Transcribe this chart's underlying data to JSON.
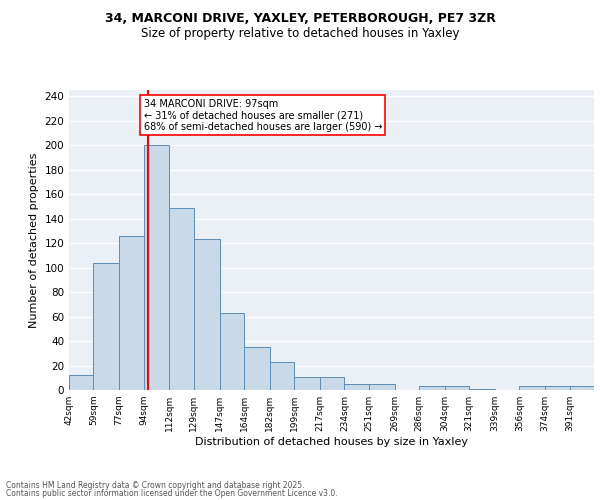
{
  "title_line1": "34, MARCONI DRIVE, YAXLEY, PETERBOROUGH, PE7 3ZR",
  "title_line2": "Size of property relative to detached houses in Yaxley",
  "xlabel": "Distribution of detached houses by size in Yaxley",
  "ylabel": "Number of detached properties",
  "bar_edges": [
    42,
    59,
    77,
    94,
    112,
    129,
    147,
    164,
    182,
    199,
    217,
    234,
    251,
    269,
    286,
    304,
    321,
    339,
    356,
    374,
    391,
    408
  ],
  "bar_heights": [
    12,
    104,
    126,
    200,
    149,
    123,
    63,
    35,
    23,
    11,
    11,
    5,
    5,
    0,
    3,
    3,
    1,
    0,
    3,
    3,
    3
  ],
  "bar_color": "#c9d9e8",
  "bar_edge_color": "#5b8db8",
  "property_size": 97,
  "annotation_text": "34 MARCONI DRIVE: 97sqm\n← 31% of detached houses are smaller (271)\n68% of semi-detached houses are larger (590) →",
  "annotation_box_color": "white",
  "annotation_box_edge_color": "red",
  "vline_color": "red",
  "vline_x": 97,
  "ylim": [
    0,
    245
  ],
  "yticks": [
    0,
    20,
    40,
    60,
    80,
    100,
    120,
    140,
    160,
    180,
    200,
    220,
    240
  ],
  "tick_labels": [
    "42sqm",
    "59sqm",
    "77sqm",
    "94sqm",
    "112sqm",
    "129sqm",
    "147sqm",
    "164sqm",
    "182sqm",
    "199sqm",
    "217sqm",
    "234sqm",
    "251sqm",
    "269sqm",
    "286sqm",
    "304sqm",
    "321sqm",
    "339sqm",
    "356sqm",
    "374sqm",
    "391sqm"
  ],
  "bg_color": "#eaf0f6",
  "grid_color": "white",
  "footer_line1": "Contains HM Land Registry data © Crown copyright and database right 2025.",
  "footer_line2": "Contains public sector information licensed under the Open Government Licence v3.0."
}
